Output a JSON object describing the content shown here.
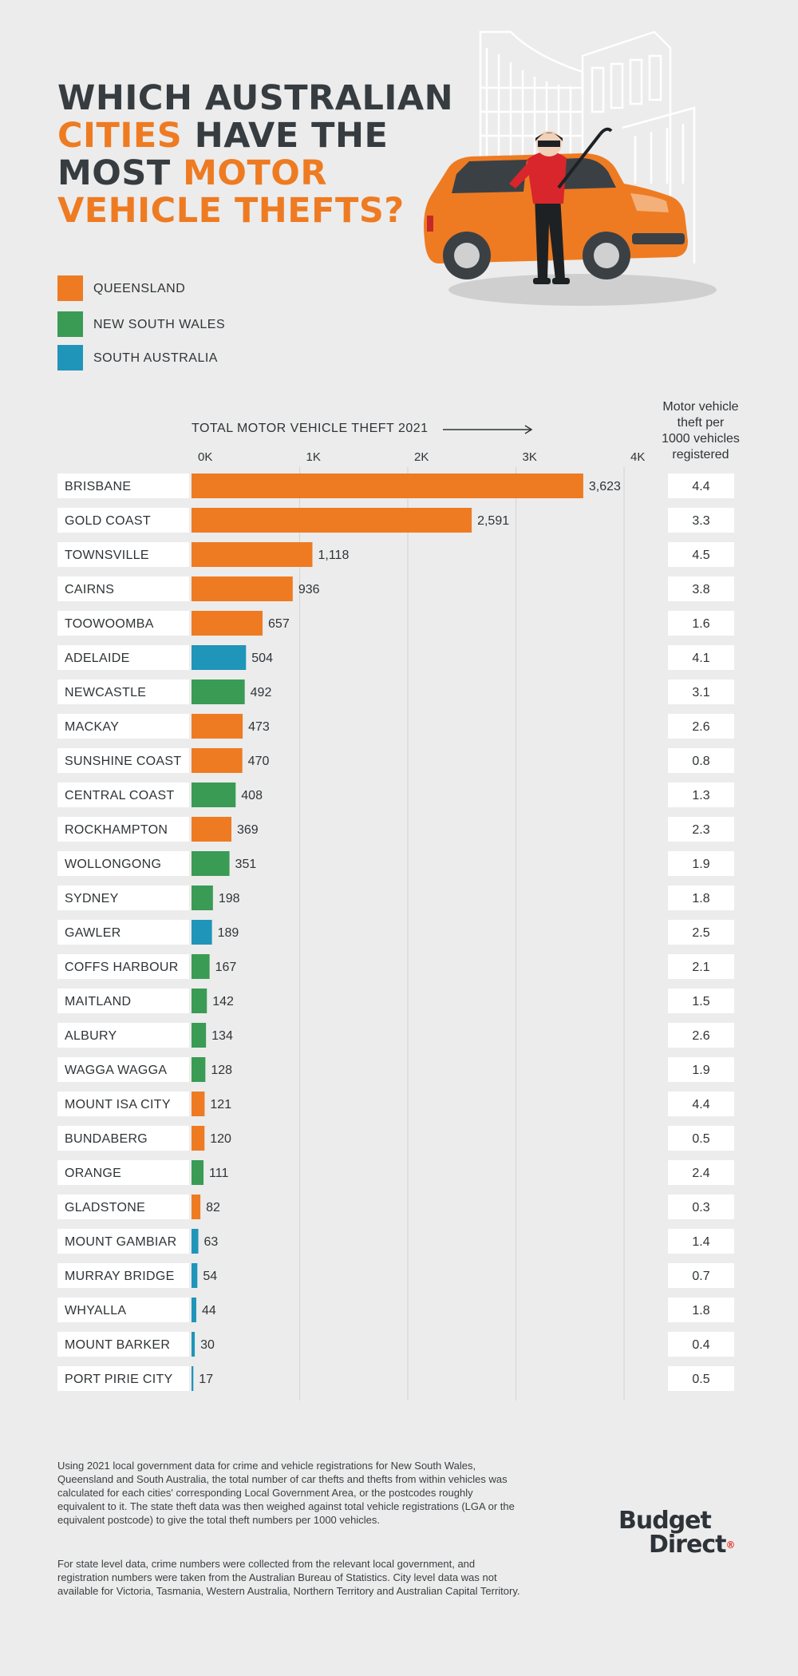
{
  "title": {
    "line1": "WHICH AUSTRALIAN",
    "line2_hl": "CITIES",
    "line2_rest": " HAVE THE",
    "line3_pre": "MOST ",
    "line3_hl": "MOTOR",
    "line4_hl": "VEHICLE THEFTS?"
  },
  "legend": [
    {
      "label": "QUEENSLAND",
      "color": "#ee7b22"
    },
    {
      "label": "NEW SOUTH WALES",
      "color": "#3a9b54"
    },
    {
      "label": "SOUTH AUSTRALIA",
      "color": "#1f95b9"
    }
  ],
  "rate_header": [
    "Motor vehicle",
    "theft per",
    "1000 vehicles",
    "registered"
  ],
  "chart_data": {
    "type": "bar",
    "orientation": "horizontal",
    "title": "TOTAL MOTOR VEHICLE THEFT 2021",
    "xlim": [
      0,
      4000
    ],
    "xticks": [
      0,
      1000,
      2000,
      3000,
      4000
    ],
    "xtick_labels": [
      "0K",
      "1K",
      "2K",
      "3K",
      "4K"
    ],
    "grid": true,
    "categories": [
      "BRISBANE",
      "GOLD COAST",
      "TOWNSVILLE",
      "CAIRNS",
      "TOOWOOMBA",
      "ADELAIDE",
      "NEWCASTLE",
      "MACKAY",
      "SUNSHINE COAST",
      "CENTRAL COAST",
      "ROCKHAMPTON",
      "WOLLONGONG",
      "SYDNEY",
      "GAWLER",
      "COFFS HARBOUR",
      "MAITLAND",
      "ALBURY",
      "WAGGA WAGGA",
      "MOUNT ISA CITY",
      "BUNDABERG",
      "ORANGE",
      "GLADSTONE",
      "MOUNT GAMBIAR",
      "MURRAY BRIDGE",
      "WHYALLA",
      "MOUNT BARKER",
      "PORT PIRIE CITY"
    ],
    "values": [
      3623,
      2591,
      1118,
      936,
      657,
      504,
      492,
      473,
      470,
      408,
      369,
      351,
      198,
      189,
      167,
      142,
      134,
      128,
      121,
      120,
      111,
      82,
      63,
      54,
      44,
      30,
      17
    ],
    "value_labels": [
      "3,623",
      "2,591",
      "1,118",
      "936",
      "657",
      "504",
      "492",
      "473",
      "470",
      "408",
      "369",
      "351",
      "198",
      "189",
      "167",
      "142",
      "134",
      "128",
      "121",
      "120",
      "111",
      "82",
      "63",
      "54",
      "44",
      "30",
      "17"
    ],
    "states": [
      "QLD",
      "QLD",
      "QLD",
      "QLD",
      "QLD",
      "SA",
      "NSW",
      "QLD",
      "QLD",
      "NSW",
      "QLD",
      "NSW",
      "NSW",
      "SA",
      "NSW",
      "NSW",
      "NSW",
      "NSW",
      "QLD",
      "QLD",
      "NSW",
      "QLD",
      "SA",
      "SA",
      "SA",
      "SA",
      "SA"
    ],
    "state_colors": {
      "QLD": "#ee7b22",
      "NSW": "#3a9b54",
      "SA": "#1f95b9"
    },
    "theft_per_1000": [
      "4.4",
      "3.3",
      "4.5",
      "3.8",
      "1.6",
      "4.1",
      "3.1",
      "2.6",
      "0.8",
      "1.3",
      "2.3",
      "1.9",
      "1.8",
      "2.5",
      "2.1",
      "1.5",
      "2.6",
      "1.9",
      "4.4",
      "0.5",
      "2.4",
      "0.3",
      "1.4",
      "0.7",
      "1.8",
      "0.4",
      "0.5"
    ]
  },
  "footnotes": [
    "Using 2021 local government data for crime and vehicle registrations for New South Wales, Queensland and South Australia, the total number of car thefts and thefts from within vehicles was calculated for each cities' corresponding Local Government Area, or the postcodes roughly equivalent to it. The state theft data was then weighed against total vehicle registrations (LGA or the equivalent postcode) to give the total theft numbers per 1000 vehicles.",
    "For state level data, crime numbers were collected from the relevant local government, and registration numbers were taken from the Australian Bureau of Statistics. City level data was not available for Victoria, Tasmania, Western Australia, Northern Territory and Australian Capital Territory."
  ],
  "logo": {
    "line1": "Budget",
    "line2": "Direct",
    "mark": "®"
  }
}
